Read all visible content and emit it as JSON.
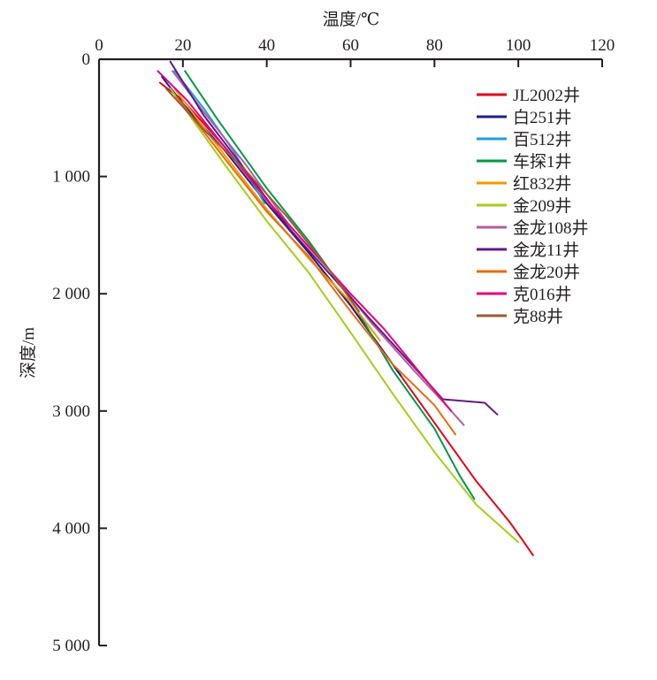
{
  "chart_data": {
    "type": "line",
    "xlabel": "温度/℃",
    "ylabel": "深度/m",
    "x_axis_position": "top",
    "y_axis_inverted": true,
    "xlim": [
      0,
      120
    ],
    "ylim": [
      0,
      5000
    ],
    "x_ticks": [
      {
        "value": 0,
        "label": "0"
      },
      {
        "value": 20,
        "label": "20"
      },
      {
        "value": 40,
        "label": "40"
      },
      {
        "value": 60,
        "label": "60"
      },
      {
        "value": 80,
        "label": "80"
      },
      {
        "value": 100,
        "label": "100"
      },
      {
        "value": 120,
        "label": "120"
      }
    ],
    "y_ticks": [
      {
        "value": 0,
        "label": "0"
      },
      {
        "value": 1000,
        "label": "1 000"
      },
      {
        "value": 2000,
        "label": "2 000"
      },
      {
        "value": 3000,
        "label": "3 000"
      },
      {
        "value": 4000,
        "label": "4 000"
      },
      {
        "value": 5000,
        "label": "5 000"
      }
    ],
    "grid": false,
    "legend_position": "top-right",
    "series": [
      {
        "name": "JL2002井",
        "color": "#e3001b",
        "points": [
          [
            14.5,
            200
          ],
          [
            20,
            350
          ],
          [
            30,
            750
          ],
          [
            40,
            1200
          ],
          [
            50,
            1650
          ],
          [
            60,
            2100
          ],
          [
            70,
            2600
          ],
          [
            80,
            3100
          ],
          [
            90,
            3600
          ],
          [
            98,
            3950
          ],
          [
            101,
            4100
          ],
          [
            103.5,
            4230
          ]
        ]
      },
      {
        "name": "白251井",
        "color": "#1d2087",
        "points": [
          [
            15,
            150
          ],
          [
            20,
            380
          ],
          [
            30,
            780
          ],
          [
            40,
            1230
          ],
          [
            50,
            1650
          ],
          [
            60,
            2100
          ],
          [
            65,
            2350
          ],
          [
            72,
            2700
          ]
        ]
      },
      {
        "name": "百512井",
        "color": "#1f9fd9",
        "points": [
          [
            18,
            100
          ],
          [
            25,
            420
          ],
          [
            32,
            780
          ],
          [
            39.5,
            1230
          ]
        ]
      },
      {
        "name": "车探1井",
        "color": "#009944",
        "points": [
          [
            20.5,
            100
          ],
          [
            28,
            500
          ],
          [
            40,
            1100
          ],
          [
            50,
            1550
          ],
          [
            60,
            2050
          ],
          [
            70,
            2650
          ],
          [
            80,
            3150
          ],
          [
            86,
            3550
          ],
          [
            89.5,
            3750
          ]
        ]
      },
      {
        "name": "红832井",
        "color": "#f39800",
        "points": [
          [
            18,
            250
          ],
          [
            30,
            820
          ],
          [
            40,
            1280
          ],
          [
            50,
            1700
          ],
          [
            60,
            2070
          ],
          [
            67,
            2400
          ]
        ]
      },
      {
        "name": "金209井",
        "color": "#a6cd1c",
        "points": [
          [
            17,
            250
          ],
          [
            30,
            900
          ],
          [
            40,
            1380
          ],
          [
            50,
            1820
          ],
          [
            60,
            2330
          ],
          [
            70,
            2850
          ],
          [
            80,
            3350
          ],
          [
            90,
            3800
          ],
          [
            100,
            4120
          ]
        ]
      },
      {
        "name": "金龙108井",
        "color": "#b05f9f",
        "points": [
          [
            17.5,
            100
          ],
          [
            25,
            450
          ],
          [
            35,
            900
          ],
          [
            45,
            1400
          ],
          [
            55,
            1800
          ],
          [
            65,
            2250
          ],
          [
            75,
            2650
          ],
          [
            82,
            2920
          ],
          [
            87,
            3120
          ]
        ]
      },
      {
        "name": "金龙11井",
        "color": "#601986",
        "points": [
          [
            17,
            20
          ],
          [
            25,
            480
          ],
          [
            35,
            950
          ],
          [
            45,
            1430
          ],
          [
            55,
            1830
          ],
          [
            65,
            2230
          ],
          [
            75,
            2620
          ],
          [
            82,
            2900
          ],
          [
            92,
            2930
          ],
          [
            95,
            3030
          ]
        ]
      },
      {
        "name": "金龙20井",
        "color": "#e86a10",
        "points": [
          [
            18.5,
            320
          ],
          [
            30,
            850
          ],
          [
            40,
            1300
          ],
          [
            50,
            1680
          ],
          [
            60,
            2150
          ],
          [
            70,
            2600
          ],
          [
            80,
            2950
          ],
          [
            85,
            3200
          ]
        ]
      },
      {
        "name": "克016井",
        "color": "#e5007f",
        "points": [
          [
            14,
            100
          ],
          [
            21,
            350
          ],
          [
            30,
            750
          ],
          [
            40,
            1200
          ],
          [
            50,
            1600
          ],
          [
            60,
            2000
          ],
          [
            68,
            2300
          ],
          [
            76,
            2650
          ],
          [
            84,
            3000
          ]
        ]
      },
      {
        "name": "克88井",
        "color": "#9e5a30",
        "points": [
          [
            16,
            250
          ],
          [
            25,
            600
          ],
          [
            35,
            950
          ],
          [
            45,
            1350
          ],
          [
            55,
            1800
          ],
          [
            62,
            2150
          ]
        ]
      }
    ]
  }
}
